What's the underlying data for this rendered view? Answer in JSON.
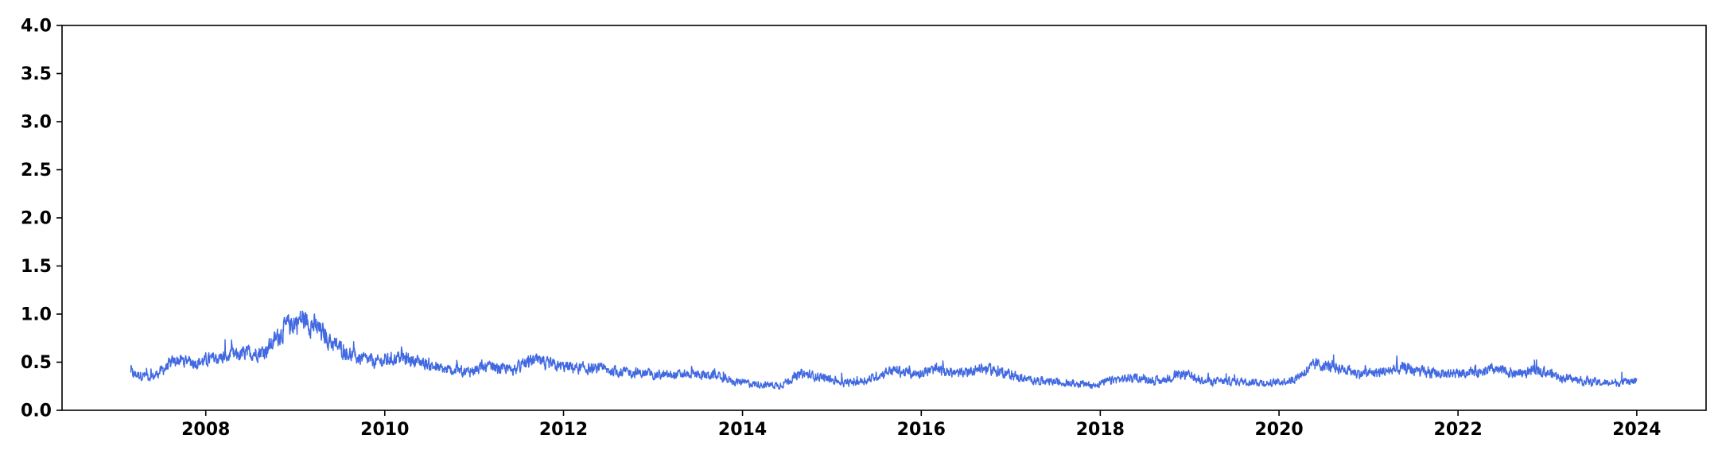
{
  "chart_data": {
    "type": "line",
    "title": "",
    "xlabel": "",
    "ylabel": "",
    "x_range": [
      "2007-03-01",
      "2024-01-01"
    ],
    "xlim": [
      "2006-05-24",
      "2024-10-10"
    ],
    "ylim": [
      0.0,
      4.0
    ],
    "grid": false,
    "x_ticks": [
      "2008",
      "2010",
      "2012",
      "2014",
      "2016",
      "2018",
      "2020",
      "2022",
      "2024"
    ],
    "y_ticks": [
      "0.0",
      "0.5",
      "1.0",
      "1.5",
      "2.0",
      "2.5",
      "3.0",
      "3.5",
      "4.0"
    ],
    "series": [
      {
        "color": "#4169e1",
        "x": [
          "2007-03-01",
          "2007-06-01",
          "2007-09-01",
          "2007-12-01",
          "2008-03-01",
          "2008-06-01",
          "2008-09-01",
          "2008-12-01",
          "2009-02-01",
          "2009-04-01",
          "2009-06-01",
          "2009-09-01",
          "2009-12-01",
          "2010-03-01",
          "2010-06-01",
          "2010-09-01",
          "2010-12-01",
          "2011-03-01",
          "2011-06-01",
          "2011-09-01",
          "2011-12-01",
          "2012-03-01",
          "2012-06-01",
          "2012-09-01",
          "2012-12-01",
          "2013-03-01",
          "2013-06-01",
          "2013-09-01",
          "2013-12-01",
          "2014-03-01",
          "2014-06-01",
          "2014-09-01",
          "2014-12-01",
          "2015-03-01",
          "2015-06-01",
          "2015-09-01",
          "2015-12-01",
          "2016-03-01",
          "2016-06-01",
          "2016-09-01",
          "2016-12-01",
          "2017-03-01",
          "2017-06-01",
          "2017-09-01",
          "2017-12-01",
          "2018-03-01",
          "2018-06-01",
          "2018-09-01",
          "2018-12-01",
          "2019-03-01",
          "2019-06-01",
          "2019-09-01",
          "2019-12-01",
          "2020-03-01",
          "2020-06-01",
          "2020-09-01",
          "2020-12-01",
          "2021-03-01",
          "2021-06-01",
          "2021-09-01",
          "2021-12-01",
          "2022-03-01",
          "2022-06-01",
          "2022-09-01",
          "2022-12-01",
          "2023-03-01",
          "2023-06-01",
          "2023-09-01",
          "2024-01-01"
        ],
        "y": [
          0.38,
          0.35,
          0.52,
          0.5,
          0.55,
          0.58,
          0.62,
          0.88,
          0.95,
          0.85,
          0.7,
          0.55,
          0.5,
          0.55,
          0.5,
          0.42,
          0.4,
          0.45,
          0.42,
          0.52,
          0.46,
          0.44,
          0.42,
          0.4,
          0.38,
          0.36,
          0.38,
          0.36,
          0.3,
          0.27,
          0.26,
          0.38,
          0.34,
          0.28,
          0.32,
          0.42,
          0.38,
          0.42,
          0.38,
          0.44,
          0.4,
          0.32,
          0.3,
          0.28,
          0.26,
          0.32,
          0.34,
          0.3,
          0.38,
          0.3,
          0.3,
          0.3,
          0.28,
          0.32,
          0.48,
          0.44,
          0.38,
          0.4,
          0.44,
          0.38,
          0.38,
          0.4,
          0.42,
          0.38,
          0.42,
          0.34,
          0.3,
          0.28,
          0.3
        ]
      }
    ]
  }
}
